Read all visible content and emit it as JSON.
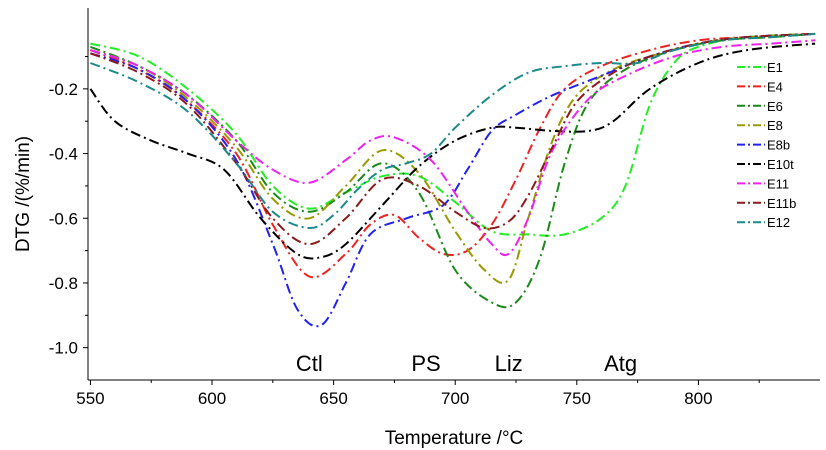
{
  "chart_data": {
    "type": "line",
    "title": "",
    "xlabel": "Temperature /°C",
    "ylabel": "DTG /(%/min)",
    "xlim": [
      549,
      850
    ],
    "ylim": [
      -1.1,
      0.05
    ],
    "xticks": [
      550,
      600,
      650,
      700,
      750,
      800
    ],
    "yticks": [
      -0.2,
      -0.4,
      -0.6,
      -0.8,
      -1.0
    ],
    "xtick_labels": [
      "550",
      "600",
      "650",
      "700",
      "750",
      "800"
    ],
    "ytick_labels": [
      "-0.2",
      "-0.4",
      "-0.6",
      "-0.8",
      "-1.0"
    ],
    "grid": false,
    "legend_position": "right",
    "line_style": "dash-dot",
    "annotations": [
      {
        "text": "Ctl",
        "x": 640,
        "y": -1.05
      },
      {
        "text": "PS",
        "x": 688,
        "y": -1.05
      },
      {
        "text": "Liz",
        "x": 722,
        "y": -1.05
      },
      {
        "text": "Atg",
        "x": 768,
        "y": -1.05
      }
    ],
    "series": [
      {
        "name": "E1",
        "color": "#22ee22",
        "x": [
          550,
          570,
          590,
          610,
          625,
          640,
          655,
          670,
          685,
          700,
          715,
          730,
          745,
          760,
          770,
          780,
          790,
          800,
          820,
          848
        ],
        "y": [
          -0.06,
          -0.1,
          -0.2,
          -0.34,
          -0.5,
          -0.57,
          -0.52,
          -0.47,
          -0.47,
          -0.55,
          -0.64,
          -0.65,
          -0.65,
          -0.6,
          -0.5,
          -0.25,
          -0.12,
          -0.07,
          -0.04,
          -0.03
        ]
      },
      {
        "name": "E4",
        "color": "#ee2222",
        "x": [
          550,
          570,
          590,
          610,
          625,
          640,
          655,
          665,
          675,
          685,
          695,
          705,
          715,
          725,
          735,
          745,
          760,
          780,
          800,
          820,
          848
        ],
        "y": [
          -0.08,
          -0.14,
          -0.24,
          -0.4,
          -0.62,
          -0.78,
          -0.71,
          -0.62,
          -0.59,
          -0.66,
          -0.71,
          -0.7,
          -0.62,
          -0.48,
          -0.32,
          -0.2,
          -0.13,
          -0.08,
          -0.05,
          -0.04,
          -0.03
        ]
      },
      {
        "name": "E6",
        "color": "#1a8a1a",
        "x": [
          550,
          570,
          590,
          610,
          625,
          640,
          655,
          670,
          685,
          700,
          715,
          725,
          735,
          745,
          755,
          770,
          790,
          810,
          830,
          848
        ],
        "y": [
          -0.07,
          -0.13,
          -0.22,
          -0.36,
          -0.52,
          -0.58,
          -0.52,
          -0.43,
          -0.52,
          -0.76,
          -0.86,
          -0.86,
          -0.72,
          -0.43,
          -0.24,
          -0.14,
          -0.08,
          -0.05,
          -0.04,
          -0.03
        ]
      },
      {
        "name": "E8",
        "color": "#999900",
        "x": [
          550,
          570,
          590,
          610,
          625,
          640,
          655,
          670,
          685,
          700,
          712,
          722,
          730,
          740,
          750,
          765,
          780,
          800,
          820,
          848
        ],
        "y": [
          -0.08,
          -0.13,
          -0.23,
          -0.38,
          -0.54,
          -0.6,
          -0.5,
          -0.39,
          -0.46,
          -0.64,
          -0.76,
          -0.79,
          -0.6,
          -0.36,
          -0.22,
          -0.14,
          -0.1,
          -0.06,
          -0.04,
          -0.03
        ]
      },
      {
        "name": "E8b",
        "color": "#2222ee",
        "x": [
          550,
          570,
          590,
          610,
          625,
          635,
          645,
          655,
          665,
          680,
          695,
          705,
          715,
          725,
          740,
          760,
          780,
          800,
          820,
          848
        ],
        "y": [
          -0.09,
          -0.14,
          -0.24,
          -0.42,
          -0.68,
          -0.88,
          -0.93,
          -0.8,
          -0.65,
          -0.6,
          -0.56,
          -0.45,
          -0.33,
          -0.28,
          -0.22,
          -0.16,
          -0.1,
          -0.06,
          -0.04,
          -0.03
        ]
      },
      {
        "name": "E10t",
        "color": "#000000",
        "x": [
          550,
          560,
          575,
          590,
          605,
          620,
          635,
          645,
          655,
          670,
          685,
          700,
          715,
          725,
          740,
          755,
          765,
          780,
          800,
          820,
          848
        ],
        "y": [
          -0.2,
          -0.3,
          -0.36,
          -0.4,
          -0.45,
          -0.6,
          -0.71,
          -0.72,
          -0.68,
          -0.56,
          -0.44,
          -0.36,
          -0.32,
          -0.32,
          -0.33,
          -0.33,
          -0.3,
          -0.2,
          -0.12,
          -0.08,
          -0.06
        ]
      },
      {
        "name": "E11",
        "color": "#ee22ee",
        "x": [
          550,
          570,
          590,
          610,
          625,
          640,
          655,
          665,
          675,
          690,
          705,
          715,
          722,
          730,
          740,
          755,
          770,
          790,
          810,
          830,
          848
        ],
        "y": [
          -0.08,
          -0.13,
          -0.22,
          -0.36,
          -0.45,
          -0.49,
          -0.42,
          -0.36,
          -0.35,
          -0.42,
          -0.58,
          -0.68,
          -0.71,
          -0.6,
          -0.39,
          -0.23,
          -0.16,
          -0.1,
          -0.07,
          -0.06,
          -0.05
        ]
      },
      {
        "name": "E11b",
        "color": "#8b1a1a",
        "x": [
          550,
          570,
          590,
          610,
          625,
          640,
          655,
          670,
          685,
          700,
          712,
          722,
          730,
          740,
          750,
          765,
          780,
          800,
          820,
          848
        ],
        "y": [
          -0.09,
          -0.15,
          -0.25,
          -0.43,
          -0.6,
          -0.68,
          -0.6,
          -0.48,
          -0.5,
          -0.58,
          -0.63,
          -0.61,
          -0.53,
          -0.38,
          -0.24,
          -0.15,
          -0.1,
          -0.06,
          -0.04,
          -0.03
        ]
      },
      {
        "name": "E12",
        "color": "#1a8a8a",
        "x": [
          550,
          570,
          590,
          610,
          625,
          640,
          650,
          660,
          670,
          680,
          690,
          700,
          715,
          730,
          745,
          760,
          775,
          790,
          810,
          830,
          848
        ],
        "y": [
          -0.12,
          -0.18,
          -0.27,
          -0.43,
          -0.58,
          -0.63,
          -0.59,
          -0.51,
          -0.45,
          -0.43,
          -0.4,
          -0.32,
          -0.22,
          -0.15,
          -0.13,
          -0.12,
          -0.12,
          -0.08,
          -0.05,
          -0.04,
          -0.03
        ]
      }
    ]
  }
}
